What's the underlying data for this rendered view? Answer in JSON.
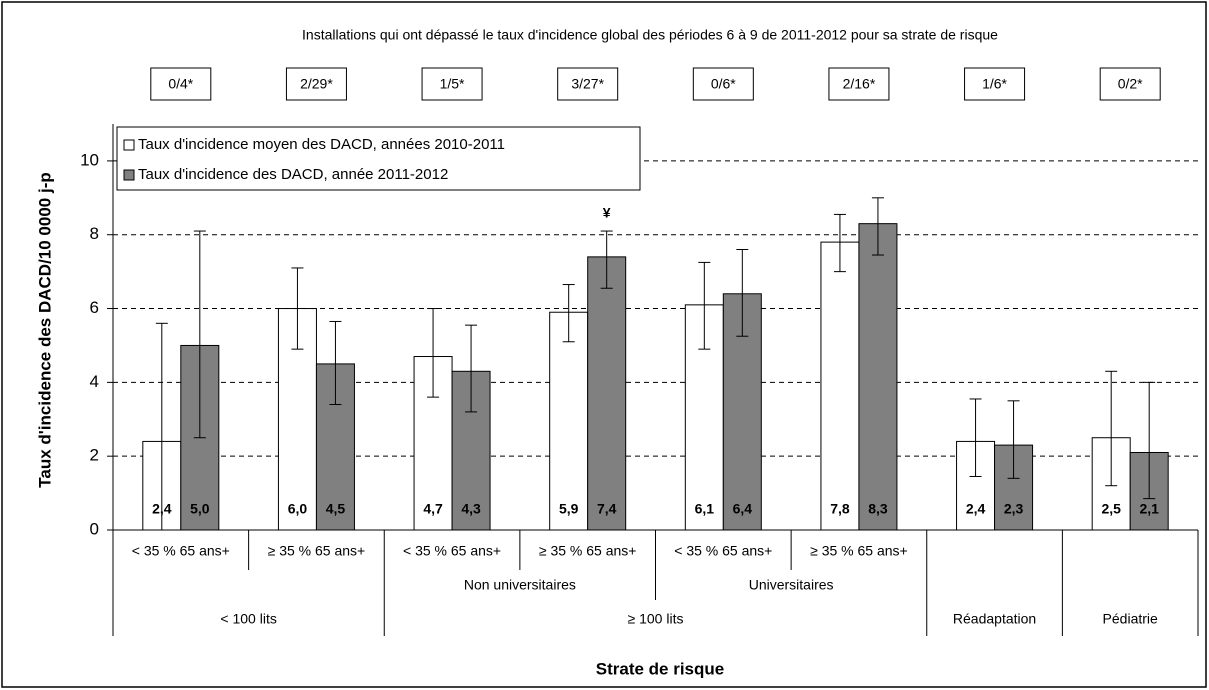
{
  "chart_data": {
    "type": "bar",
    "title": "Installations qui ont dépassé le taux d'incidence global des périodes 6 à 9 de 2011-2012  pour sa strate de risque",
    "group_notes": [
      "0/4*",
      "2/29*",
      "1/5*",
      "3/27*",
      "0/6*",
      "2/16*",
      "1/6*",
      "0/2*"
    ],
    "y_label": "Taux d'incidence des  DACD/10 0000 j-p",
    "x_label": "Strate de risque",
    "categories": [
      "< 35 % 65 ans+",
      "≥ 35 % 65 ans+",
      "< 35 % 65 ans+",
      "≥ 35 % 65 ans+",
      "< 35 % 65 ans+",
      "≥ 35 % 65 ans+",
      null,
      null
    ],
    "category_level2": [
      {
        "label": null,
        "span": 2
      },
      {
        "label": "Non universitaires",
        "span": 2
      },
      {
        "label": "Universitaires",
        "span": 2
      },
      {
        "label": null,
        "span": 1
      },
      {
        "label": null,
        "span": 1
      }
    ],
    "category_level3": [
      {
        "label": "< 100 lits",
        "span": 2
      },
      {
        "label": "≥ 100 lits",
        "span": 4
      },
      {
        "label": "Réadaptation",
        "span": 1
      },
      {
        "label": "Pédiatrie",
        "span": 1
      }
    ],
    "series": [
      {
        "name": "Taux d'incidence moyen des DACD, années 2010-2011",
        "color": "#ffffff",
        "values": [
          2.4,
          6.0,
          4.7,
          5.9,
          6.1,
          7.8,
          2.4,
          2.5
        ],
        "value_labels": [
          "2,4",
          "6,0",
          "4,7",
          "5,9",
          "6,1",
          "7,8",
          "2,4",
          "2,5"
        ],
        "ci_low": [
          0,
          4.9,
          3.6,
          5.1,
          4.9,
          7.0,
          1.45,
          1.2
        ],
        "ci_high": [
          5.6,
          7.1,
          6.0,
          6.65,
          7.25,
          8.55,
          3.55,
          4.3
        ]
      },
      {
        "name": "Taux d'incidence des DACD, année 2011-2012",
        "color": "#808080",
        "values": [
          5.0,
          4.5,
          4.3,
          7.4,
          6.4,
          8.3,
          2.3,
          2.1
        ],
        "value_labels": [
          "5,0",
          "4,5",
          "4,3",
          "7,4",
          "6,4",
          "8,3",
          "2,3",
          "2,1"
        ],
        "ci_low": [
          2.5,
          3.4,
          3.2,
          6.55,
          5.25,
          7.45,
          1.4,
          0.85
        ],
        "ci_high": [
          8.1,
          5.65,
          5.55,
          8.1,
          7.6,
          9.0,
          3.5,
          4.0
        ]
      }
    ],
    "annotation": "¥",
    "ylim": [
      0,
      11
    ],
    "yticks": [
      0,
      2,
      4,
      6,
      8,
      10
    ],
    "grid": true,
    "legend": "top-left"
  }
}
